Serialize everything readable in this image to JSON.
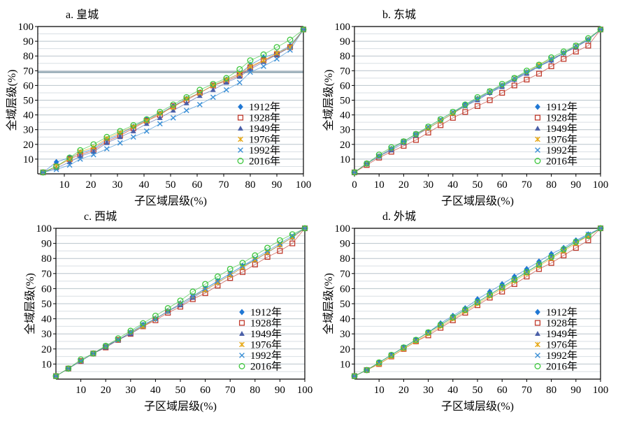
{
  "chart_data": [
    {
      "type": "line",
      "title": "a. 皇城",
      "xlabel": "子区域层级(%)",
      "ylabel": "全域层级(%)",
      "xlim": [
        0,
        100
      ],
      "ylim": [
        0,
        100
      ],
      "xticks": [
        "10",
        "20",
        "30",
        "40",
        "50",
        "60",
        "70",
        "80",
        "90",
        "100"
      ],
      "yticks": [
        "10",
        "20",
        "30",
        "40",
        "50",
        "60",
        "70",
        "80",
        "90",
        "100"
      ],
      "legend_position": "lower-right",
      "x": [
        2,
        7,
        12,
        16,
        21,
        26,
        31,
        36,
        41,
        46,
        51,
        56,
        61,
        66,
        71,
        76,
        80,
        85,
        90,
        95,
        100
      ],
      "series": [
        {
          "name": "1912年",
          "values": [
            1,
            8,
            11,
            14,
            17,
            23,
            27,
            32,
            37,
            41,
            46,
            51,
            55,
            60,
            64,
            68,
            74,
            79,
            82,
            87,
            98
          ]
        },
        {
          "name": "1928年",
          "values": [
            1,
            5,
            10,
            13,
            16,
            22,
            26,
            31,
            36,
            40,
            46,
            50,
            55,
            60,
            63,
            67,
            72,
            77,
            81,
            86,
            98
          ]
        },
        {
          "name": "1949年",
          "values": [
            1,
            4,
            8,
            12,
            15,
            21,
            25,
            29,
            34,
            38,
            43,
            48,
            53,
            57,
            62,
            66,
            71,
            76,
            81,
            86,
            98
          ]
        },
        {
          "name": "1976年",
          "values": [
            1,
            5,
            10,
            15,
            18,
            24,
            28,
            32,
            36,
            41,
            45,
            51,
            55,
            60,
            64,
            68,
            73,
            77,
            82,
            86,
            98
          ]
        },
        {
          "name": "1992年",
          "values": [
            1,
            3,
            6,
            10,
            13,
            17,
            21,
            25,
            29,
            34,
            38,
            43,
            47,
            52,
            57,
            62,
            69,
            73,
            78,
            84,
            98
          ]
        },
        {
          "name": "2016年",
          "values": [
            1,
            5,
            11,
            16,
            20,
            25,
            29,
            33,
            37,
            42,
            47,
            52,
            57,
            61,
            65,
            71,
            77,
            81,
            86,
            91,
            98
          ]
        }
      ]
    },
    {
      "type": "line",
      "title": "b. 东城",
      "xlabel": "子区域层级(%)",
      "ylabel": "全域层级(%)",
      "xlim": [
        0,
        100
      ],
      "ylim": [
        0,
        100
      ],
      "xticks": [
        "0",
        "10",
        "20",
        "30",
        "40",
        "50",
        "60",
        "70",
        "80",
        "90",
        "100"
      ],
      "yticks": [
        "10",
        "20",
        "30",
        "40",
        "50",
        "60",
        "70",
        "80",
        "90",
        "100"
      ],
      "legend_position": "lower-right",
      "x": [
        0,
        5,
        10,
        15,
        20,
        25,
        30,
        35,
        40,
        45,
        50,
        55,
        60,
        65,
        70,
        75,
        80,
        85,
        90,
        95,
        100
      ],
      "series": [
        {
          "name": "1912年",
          "values": [
            1,
            7,
            12,
            17,
            22,
            27,
            31,
            36,
            41,
            47,
            51,
            55,
            60,
            64,
            69,
            73,
            77,
            82,
            86,
            91,
            98
          ]
        },
        {
          "name": "1928年",
          "values": [
            1,
            6,
            11,
            15,
            19,
            23,
            28,
            33,
            38,
            42,
            46,
            50,
            55,
            60,
            64,
            68,
            73,
            78,
            83,
            87,
            98
          ]
        },
        {
          "name": "1949年",
          "values": [
            1,
            7,
            12,
            16,
            21,
            26,
            31,
            36,
            41,
            46,
            50,
            55,
            59,
            64,
            68,
            73,
            77,
            82,
            86,
            91,
            98
          ]
        },
        {
          "name": "1976年",
          "values": [
            1,
            7,
            12,
            17,
            22,
            27,
            31,
            36,
            41,
            46,
            51,
            56,
            60,
            65,
            69,
            74,
            78,
            82,
            87,
            91,
            98
          ]
        },
        {
          "name": "1992年",
          "values": [
            1,
            7,
            12,
            17,
            22,
            27,
            32,
            37,
            42,
            46,
            51,
            56,
            60,
            65,
            69,
            73,
            78,
            82,
            87,
            91,
            98
          ]
        },
        {
          "name": "2016年",
          "values": [
            1,
            7,
            13,
            18,
            22,
            27,
            32,
            37,
            42,
            47,
            52,
            56,
            61,
            65,
            70,
            74,
            79,
            83,
            87,
            92,
            98
          ]
        }
      ]
    },
    {
      "type": "line",
      "title": "c. 西城",
      "xlabel": "子区域层级(%)",
      "ylabel": "全域层级(%)",
      "xlim": [
        0,
        100
      ],
      "ylim": [
        0,
        100
      ],
      "xticks": [
        "10",
        "20",
        "30",
        "40",
        "50",
        "60",
        "70",
        "80",
        "90",
        "100"
      ],
      "yticks": [
        "10",
        "20",
        "30",
        "40",
        "50",
        "60",
        "70",
        "80",
        "90",
        "100"
      ],
      "legend_position": "lower-right",
      "x": [
        0,
        5,
        10,
        15,
        20,
        25,
        30,
        35,
        40,
        45,
        50,
        55,
        60,
        65,
        70,
        75,
        80,
        85,
        90,
        95,
        100
      ],
      "series": [
        {
          "name": "1912年",
          "values": [
            2,
            7,
            12,
            17,
            22,
            26,
            31,
            36,
            40,
            45,
            50,
            55,
            60,
            65,
            70,
            75,
            79,
            84,
            89,
            94,
            100
          ]
        },
        {
          "name": "1928年",
          "values": [
            2,
            7,
            12,
            17,
            21,
            26,
            30,
            35,
            39,
            44,
            48,
            53,
            57,
            62,
            67,
            71,
            76,
            81,
            85,
            90,
            100
          ]
        },
        {
          "name": "1949年",
          "values": [
            2,
            7,
            12,
            17,
            21,
            26,
            30,
            35,
            40,
            45,
            49,
            54,
            59,
            64,
            69,
            74,
            79,
            84,
            89,
            94,
            100
          ]
        },
        {
          "name": "1976年",
          "values": [
            2,
            7,
            12,
            17,
            22,
            26,
            31,
            35,
            40,
            45,
            50,
            55,
            59,
            64,
            69,
            74,
            79,
            84,
            89,
            94,
            100
          ]
        },
        {
          "name": "1992年",
          "values": [
            2,
            7,
            12,
            17,
            22,
            26,
            31,
            36,
            40,
            45,
            50,
            55,
            60,
            65,
            70,
            75,
            80,
            85,
            90,
            95,
            100
          ]
        },
        {
          "name": "2016年",
          "values": [
            2,
            7,
            13,
            17,
            22,
            27,
            32,
            37,
            42,
            47,
            52,
            58,
            63,
            68,
            73,
            77,
            82,
            87,
            92,
            96,
            100
          ]
        }
      ]
    },
    {
      "type": "line",
      "title": "d. 外城",
      "xlabel": "子区域层级(%)",
      "ylabel": "全域层级(%)",
      "xlim": [
        0,
        100
      ],
      "ylim": [
        0,
        100
      ],
      "xticks": [
        "10",
        "20",
        "30",
        "40",
        "50",
        "60",
        "70",
        "80",
        "90",
        "100"
      ],
      "yticks": [
        "10",
        "20",
        "30",
        "40",
        "50",
        "60",
        "70",
        "80",
        "90",
        "100"
      ],
      "legend_position": "lower-right",
      "x": [
        0,
        5,
        10,
        15,
        20,
        25,
        30,
        35,
        40,
        45,
        50,
        55,
        60,
        65,
        70,
        75,
        80,
        85,
        90,
        95,
        100
      ],
      "series": [
        {
          "name": "1912年",
          "values": [
            2,
            6,
            11,
            16,
            21,
            26,
            31,
            37,
            42,
            47,
            53,
            58,
            63,
            68,
            73,
            78,
            83,
            87,
            92,
            96,
            100
          ]
        },
        {
          "name": "1928年",
          "values": [
            2,
            6,
            10,
            15,
            20,
            25,
            29,
            34,
            39,
            44,
            49,
            54,
            58,
            63,
            68,
            73,
            77,
            82,
            87,
            92,
            100
          ]
        },
        {
          "name": "1949年",
          "values": [
            2,
            6,
            11,
            16,
            21,
            26,
            31,
            36,
            41,
            46,
            51,
            56,
            61,
            66,
            71,
            76,
            81,
            86,
            91,
            95,
            100
          ]
        },
        {
          "name": "1976年",
          "values": [
            2,
            6,
            10,
            15,
            20,
            25,
            30,
            35,
            40,
            45,
            50,
            55,
            60,
            65,
            70,
            75,
            80,
            85,
            90,
            95,
            100
          ]
        },
        {
          "name": "1992年",
          "values": [
            2,
            6,
            11,
            16,
            21,
            26,
            31,
            36,
            41,
            46,
            51,
            56,
            61,
            66,
            71,
            76,
            81,
            86,
            91,
            96,
            100
          ]
        },
        {
          "name": "2016年",
          "values": [
            2,
            6,
            11,
            16,
            21,
            26,
            31,
            36,
            41,
            46,
            51,
            56,
            61,
            66,
            71,
            76,
            81,
            86,
            91,
            95,
            100
          ]
        }
      ]
    }
  ],
  "colors": {
    "1912年": "#1f77d4",
    "1928年": "#c0392b",
    "1949年": "#4a5fa8",
    "1976年": "#e6a817",
    "1992年": "#3a8fd6",
    "2016年": "#3cc63c"
  },
  "markers": {
    "1912年": "diamond-icon",
    "1928年": "square-icon",
    "1949年": "triangle-icon",
    "1976年": "asterisk-icon",
    "1992年": "x-icon",
    "2016年": "circle-icon"
  },
  "highlight_line_panel_a": 69
}
